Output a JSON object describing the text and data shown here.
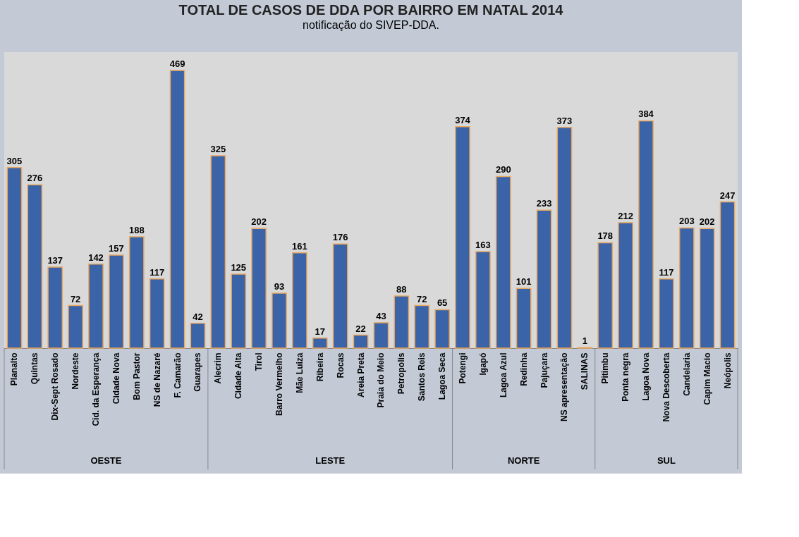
{
  "chart_data": {
    "type": "bar",
    "title": "TOTAL DE CASOS DE DDA POR BAIRRO EM NATAL 2014",
    "categories": [
      "Planalto",
      "Quintas",
      "Dix-Sept Rosado",
      "Nordeste",
      "Cid. da Esperança",
      "Cidade Nova",
      "Bom Pastor",
      "NS de Nazaré",
      "F. Camarão",
      "Guarapes",
      "Alecrim",
      "Cidade Alta",
      "Tirol",
      "Barro Vermelho",
      "Mãe Luiza",
      "Ribeira",
      "Rocas",
      "Areia Preta",
      "Praia do Meio",
      "Petropolis",
      "Santos Reis",
      "Lagoa Seca",
      "Potengi",
      "Igapó",
      "Lagoa Azul",
      "Redinha",
      "Pajuçara",
      "NS apresentação",
      "SALINAS",
      "Pitimbu",
      "Ponta negra",
      "Lagoa Nova",
      "Nova Descoberta",
      "Candelaria",
      "Capim Macio",
      "Neópolis"
    ],
    "values": [
      305,
      276,
      137,
      72,
      142,
      157,
      188,
      117,
      469,
      42,
      325,
      125,
      202,
      93,
      161,
      17,
      176,
      22,
      43,
      88,
      72,
      65,
      374,
      163,
      290,
      101,
      233,
      373,
      1,
      178,
      212,
      384,
      117,
      203,
      202,
      247
    ],
    "color": "#3b63a8",
    "data_labels": true,
    "annotations": [
      "notificação do SIVEP-DDA.",
      "OESTE",
      "LESTE",
      "NORTE",
      "SUL"
    ]
  }
}
